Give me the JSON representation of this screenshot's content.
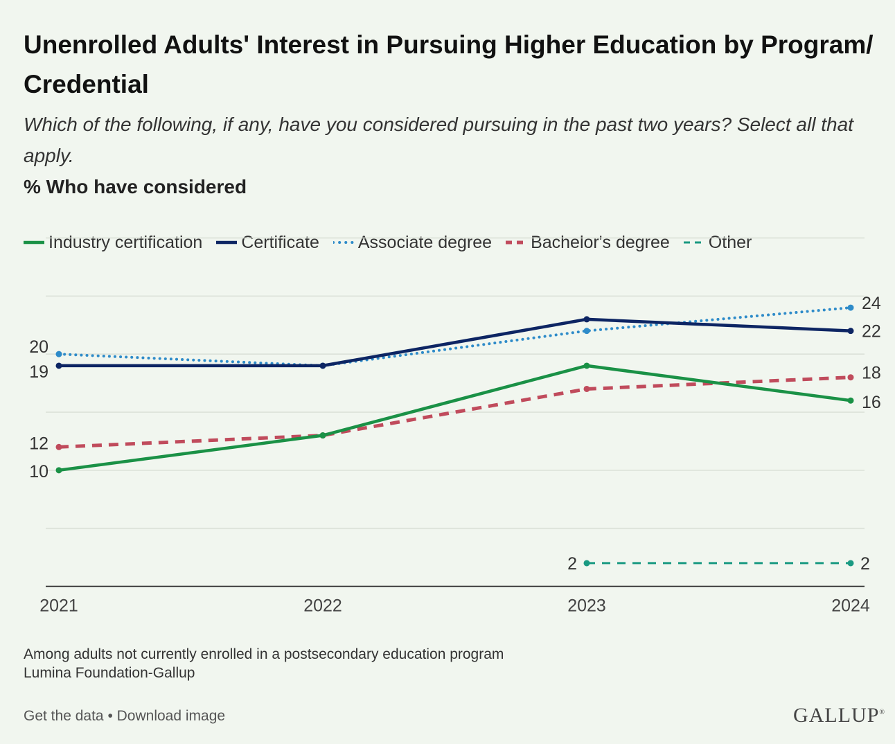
{
  "title": "Unenrolled Adults' Interest in Pursuing Higher Education by Program/ Credential",
  "subtitle": "Which of the following, if any, have you considered pursuing in the past two years? Select all that apply.",
  "measure": "% Who have considered",
  "footnote": {
    "population": "Among adults not currently enrolled in a postsecondary education program",
    "source": "Lumina Foundation-Gallup"
  },
  "footer": {
    "get_data": "Get the data",
    "separator": "•",
    "download": "Download image"
  },
  "brand": {
    "name": "GALLUP",
    "mark": "®"
  },
  "colors": {
    "industry": "#1a9146",
    "certificate": "#0d2563",
    "associate": "#2e8bc9",
    "bachelor": "#c04b5c",
    "other": "#1a9a82"
  },
  "chart_data": {
    "type": "line",
    "categories": [
      "2021",
      "2022",
      "2023",
      "2024"
    ],
    "ylim": [
      -2,
      32
    ],
    "yticks": [
      0,
      5,
      10,
      15,
      20,
      25,
      30
    ],
    "grid": true,
    "legend_position": "top-left",
    "series": [
      {
        "key": "industry",
        "name": "Industry certification",
        "style": "solid",
        "values": [
          10,
          13,
          19,
          16
        ],
        "labels": [
          "10",
          null,
          null,
          "16"
        ]
      },
      {
        "key": "certificate",
        "name": "Certificate",
        "style": "solid",
        "values": [
          19,
          19,
          23,
          22
        ],
        "labels": [
          "19",
          null,
          null,
          "22"
        ]
      },
      {
        "key": "associate",
        "name": "Associate degree",
        "style": "dotted",
        "values": [
          20,
          19,
          22,
          24
        ],
        "labels": [
          "20",
          null,
          null,
          "24"
        ]
      },
      {
        "key": "bachelor",
        "name": "Bachelor's degree",
        "style": "dashed",
        "values": [
          12,
          13,
          17,
          18
        ],
        "labels": [
          "12",
          null,
          null,
          "18"
        ]
      },
      {
        "key": "other",
        "name": "Other",
        "style": "dashed-thin",
        "values": [
          null,
          null,
          2,
          2
        ],
        "labels": [
          null,
          null,
          "2",
          "2"
        ]
      }
    ]
  }
}
